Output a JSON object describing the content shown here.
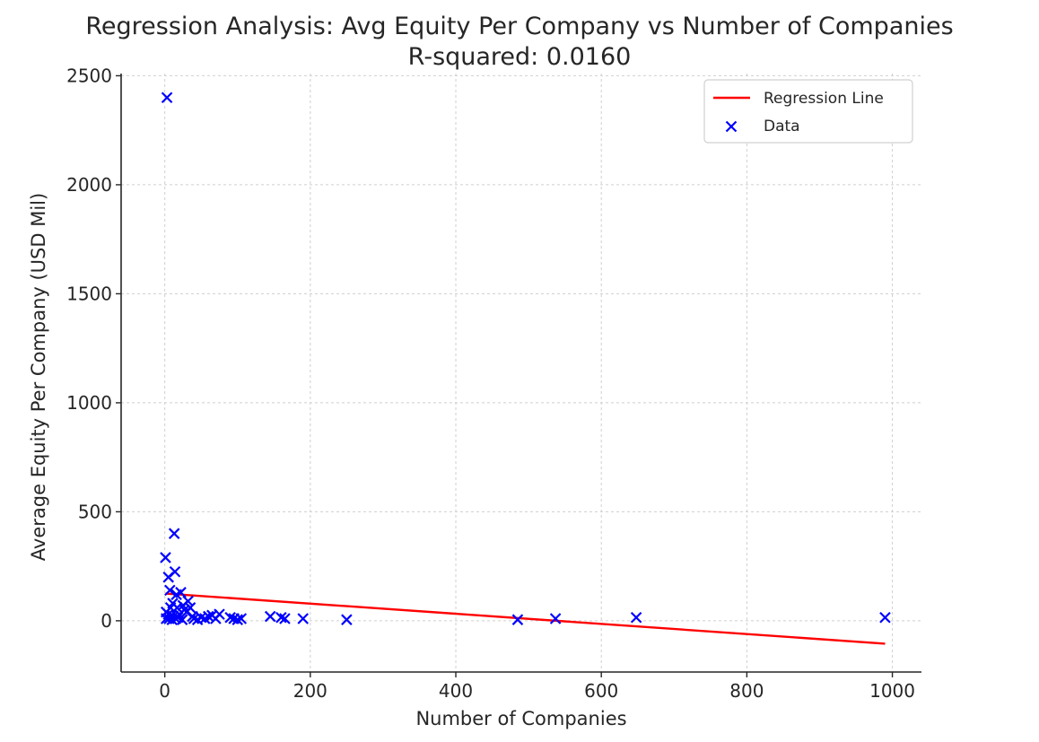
{
  "chart_data": {
    "type": "scatter",
    "title": "Regression Analysis: Avg Equity Per Company vs Number of Companies",
    "subtitle": "R-squared: 0.0160",
    "xlabel": "Number of Companies",
    "ylabel": "Average Equity Per Company (USD Mil)",
    "xlim": [
      -60,
      1040
    ],
    "ylim": [
      -235,
      2510
    ],
    "x_ticks": [
      0,
      200,
      400,
      600,
      800,
      1000
    ],
    "y_ticks": [
      0,
      500,
      1000,
      1500,
      2000,
      2500
    ],
    "grid": true,
    "legend_position": "top-right",
    "colors": {
      "data": "#0000ff",
      "regression": "#ff0000"
    },
    "series": [
      {
        "name": "Data",
        "kind": "scatter",
        "marker": "x",
        "x": [
          3,
          1,
          2,
          2,
          5,
          5,
          6,
          7,
          8,
          9,
          10,
          11,
          12,
          13,
          14,
          15,
          16,
          17,
          18,
          20,
          22,
          24,
          25,
          27,
          30,
          32,
          35,
          38,
          40,
          45,
          50,
          55,
          60,
          65,
          70,
          75,
          90,
          95,
          100,
          105,
          145,
          160,
          165,
          190,
          250,
          485,
          537,
          648,
          990
        ],
        "y": [
          2400,
          290,
          40,
          10,
          200,
          30,
          10,
          140,
          60,
          25,
          5,
          80,
          20,
          400,
          225,
          10,
          120,
          60,
          15,
          30,
          130,
          5,
          70,
          50,
          40,
          90,
          60,
          20,
          10,
          5,
          15,
          10,
          20,
          25,
          10,
          30,
          15,
          10,
          5,
          10,
          20,
          15,
          10,
          10,
          5,
          5,
          10,
          15,
          15
        ]
      },
      {
        "name": "Regression Line",
        "kind": "line",
        "x": [
          1,
          990
        ],
        "y": [
          125,
          -105
        ]
      }
    ]
  }
}
